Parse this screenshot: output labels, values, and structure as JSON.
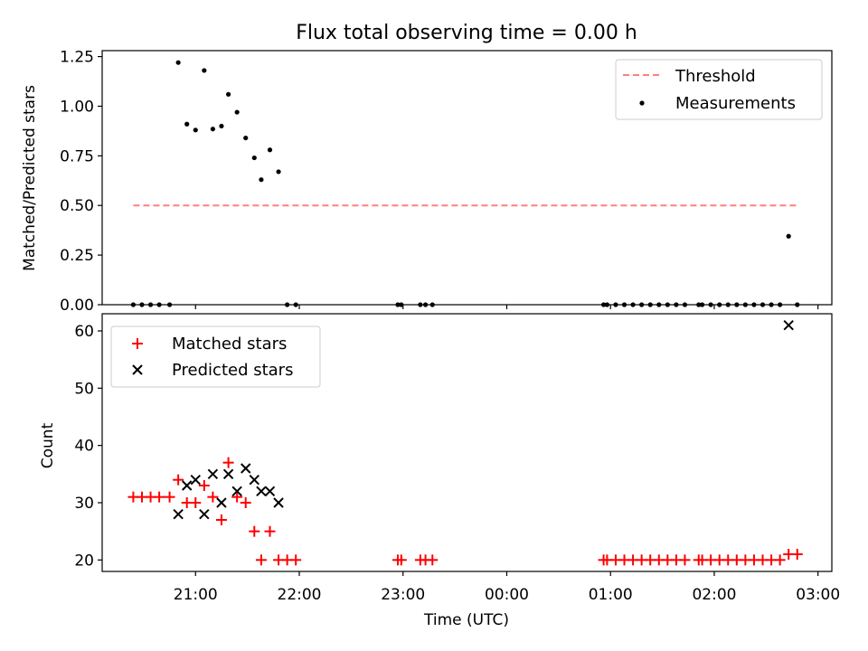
{
  "chart_data": [
    {
      "type": "scatter",
      "title": "Flux total observing time = 0.00 h",
      "xlabel": "",
      "ylabel": "Matched/Predicted stars",
      "ylim": [
        0,
        1.28
      ],
      "yticks": [
        "0.00",
        "0.25",
        "0.50",
        "0.75",
        "1.00",
        "1.25"
      ],
      "ytick_values": [
        0,
        0.25,
        0.5,
        0.75,
        1.0,
        1.25
      ],
      "xlim": [
        "20:06",
        "03:08"
      ],
      "legend_position": "upper right",
      "threshold": {
        "name": "Threshold",
        "y": 0.5,
        "x_start": "20:24",
        "x_end": "02:48",
        "color": "#ff7f7f"
      },
      "series": [
        {
          "name": "Measurements",
          "color": "#000000",
          "points": [
            [
              "20:24",
              0
            ],
            [
              "20:29",
              0
            ],
            [
              "20:34",
              0
            ],
            [
              "20:39",
              0
            ],
            [
              "20:45",
              0
            ],
            [
              "20:50",
              1.22
            ],
            [
              "20:55",
              0.91
            ],
            [
              "21:00",
              0.88
            ],
            [
              "21:05",
              1.18
            ],
            [
              "21:10",
              0.885
            ],
            [
              "21:15",
              0.9
            ],
            [
              "21:19",
              1.06
            ],
            [
              "21:24",
              0.97
            ],
            [
              "21:29",
              0.84
            ],
            [
              "21:34",
              0.74
            ],
            [
              "21:38",
              0.63
            ],
            [
              "21:43",
              0.78
            ],
            [
              "21:48",
              0.67
            ],
            [
              "21:53",
              0
            ],
            [
              "21:58",
              0
            ],
            [
              "22:57",
              0
            ],
            [
              "22:59",
              0
            ],
            [
              "23:10",
              0
            ],
            [
              "23:13",
              0
            ],
            [
              "23:17",
              0
            ],
            [
              "00:56",
              0
            ],
            [
              "00:58",
              0
            ],
            [
              "01:03",
              0
            ],
            [
              "01:08",
              0
            ],
            [
              "01:13",
              0
            ],
            [
              "01:18",
              0
            ],
            [
              "01:23",
              0
            ],
            [
              "01:28",
              0
            ],
            [
              "01:33",
              0
            ],
            [
              "01:38",
              0
            ],
            [
              "01:43",
              0
            ],
            [
              "01:51",
              0
            ],
            [
              "01:53",
              0
            ],
            [
              "01:58",
              0
            ],
            [
              "02:03",
              0
            ],
            [
              "02:08",
              0
            ],
            [
              "02:13",
              0
            ],
            [
              "02:18",
              0
            ],
            [
              "02:23",
              0
            ],
            [
              "02:28",
              0
            ],
            [
              "02:33",
              0
            ],
            [
              "02:38",
              0
            ],
            [
              "02:43",
              0.345
            ],
            [
              "02:48",
              0
            ]
          ]
        }
      ]
    },
    {
      "type": "scatter",
      "xlabel": "Time (UTC)",
      "ylabel": "Count",
      "ylim": [
        18,
        63
      ],
      "yticks": [
        "20",
        "30",
        "40",
        "50",
        "60"
      ],
      "ytick_values": [
        20,
        30,
        40,
        50,
        60
      ],
      "xlim": [
        "20:06",
        "03:08"
      ],
      "xticks": [
        "21:00",
        "22:00",
        "23:00",
        "00:00",
        "01:00",
        "02:00",
        "03:00"
      ],
      "legend_position": "upper left",
      "series": [
        {
          "name": "Matched stars",
          "color": "#ff0000",
          "marker": "plus",
          "points": [
            [
              "20:24",
              31
            ],
            [
              "20:29",
              31
            ],
            [
              "20:34",
              31
            ],
            [
              "20:39",
              31
            ],
            [
              "20:45",
              31
            ],
            [
              "20:50",
              34
            ],
            [
              "20:55",
              30
            ],
            [
              "21:00",
              30
            ],
            [
              "21:05",
              33
            ],
            [
              "21:10",
              31
            ],
            [
              "21:15",
              27
            ],
            [
              "21:19",
              37
            ],
            [
              "21:24",
              31
            ],
            [
              "21:29",
              30
            ],
            [
              "21:34",
              25
            ],
            [
              "21:38",
              20
            ],
            [
              "21:43",
              25
            ],
            [
              "21:48",
              20
            ],
            [
              "21:53",
              20
            ],
            [
              "21:58",
              20
            ],
            [
              "22:57",
              20
            ],
            [
              "22:59",
              20
            ],
            [
              "23:10",
              20
            ],
            [
              "23:13",
              20
            ],
            [
              "23:17",
              20
            ],
            [
              "00:56",
              20
            ],
            [
              "00:58",
              20
            ],
            [
              "01:03",
              20
            ],
            [
              "01:08",
              20
            ],
            [
              "01:13",
              20
            ],
            [
              "01:18",
              20
            ],
            [
              "01:23",
              20
            ],
            [
              "01:28",
              20
            ],
            [
              "01:33",
              20
            ],
            [
              "01:38",
              20
            ],
            [
              "01:43",
              20
            ],
            [
              "01:51",
              20
            ],
            [
              "01:53",
              20
            ],
            [
              "01:58",
              20
            ],
            [
              "02:03",
              20
            ],
            [
              "02:08",
              20
            ],
            [
              "02:13",
              20
            ],
            [
              "02:18",
              20
            ],
            [
              "02:23",
              20
            ],
            [
              "02:28",
              20
            ],
            [
              "02:33",
              20
            ],
            [
              "02:38",
              20
            ],
            [
              "02:43",
              21
            ],
            [
              "02:48",
              21
            ]
          ]
        },
        {
          "name": "Predicted stars",
          "color": "#000000",
          "marker": "x",
          "points": [
            [
              "20:50",
              28
            ],
            [
              "20:55",
              33
            ],
            [
              "21:00",
              34
            ],
            [
              "21:05",
              28
            ],
            [
              "21:10",
              35
            ],
            [
              "21:15",
              30
            ],
            [
              "21:19",
              35
            ],
            [
              "21:24",
              32
            ],
            [
              "21:29",
              36
            ],
            [
              "21:34",
              34
            ],
            [
              "21:38",
              32
            ],
            [
              "21:43",
              32
            ],
            [
              "21:48",
              30
            ],
            [
              "02:43",
              61
            ]
          ]
        }
      ]
    }
  ]
}
